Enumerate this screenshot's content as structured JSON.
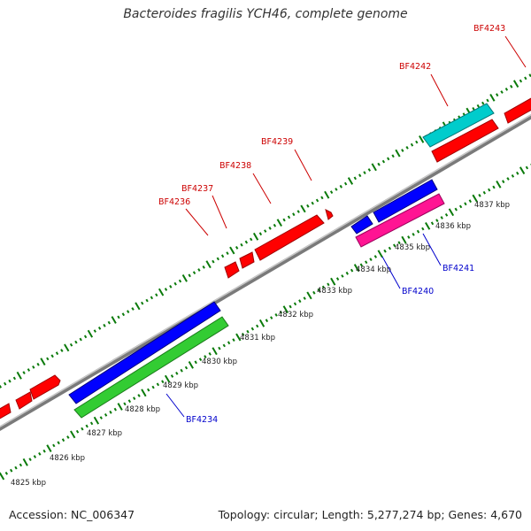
{
  "title": "Bacteroides fragilis YCH46, complete genome",
  "footer": {
    "accession": "Accession: NC_006347",
    "topology": "Topology: circular; Length: 5,277,274 bp; Genes: 4,670"
  },
  "colors": {
    "backbone": "#808080",
    "tick": "#0a7a0a",
    "tick_label": "#222222",
    "forward_label": "#cc0000",
    "reverse_label": "#0000cc"
  },
  "ticks": [
    {
      "label": "4825 kbp"
    },
    {
      "label": "4826 kbp"
    },
    {
      "label": "4827 kbp"
    },
    {
      "label": "4828 kbp"
    },
    {
      "label": "4829 kbp"
    },
    {
      "label": "4830 kbp"
    },
    {
      "label": "4831 kbp"
    },
    {
      "label": "4832 kbp"
    },
    {
      "label": "4833 kbp"
    },
    {
      "label": "4834 kbp"
    },
    {
      "label": "4835 kbp"
    },
    {
      "label": "4836 kbp"
    },
    {
      "label": "4837 kbp"
    }
  ],
  "gene_labels": [
    {
      "name": "BF4236",
      "strand": "forward"
    },
    {
      "name": "BF4237",
      "strand": "forward"
    },
    {
      "name": "BF4238",
      "strand": "forward"
    },
    {
      "name": "BF4239",
      "strand": "forward"
    },
    {
      "name": "BF4242",
      "strand": "forward"
    },
    {
      "name": "BF4243",
      "strand": "forward"
    },
    {
      "name": "BF4234",
      "strand": "reverse"
    },
    {
      "name": "BF4240",
      "strand": "reverse"
    },
    {
      "name": "BF4241",
      "strand": "reverse"
    }
  ]
}
